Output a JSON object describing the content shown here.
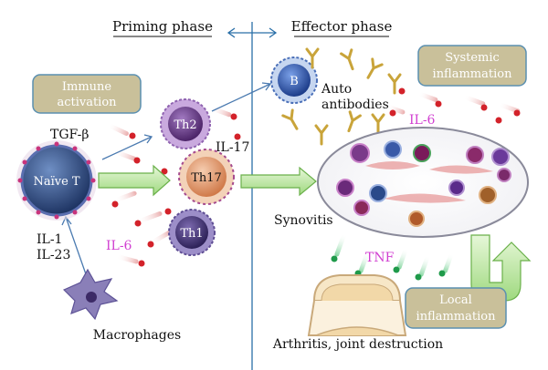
{
  "phases": {
    "priming": "Priming phase",
    "effector": "Effector phase"
  },
  "boxes": {
    "immune_activation_line1": "Immune",
    "immune_activation_line2": "activation",
    "systemic_line1": "Systemic",
    "systemic_line2": "inflammation",
    "local_line1": "Local",
    "local_line2": "inflammation"
  },
  "cells": {
    "naive_t": "Naïve T",
    "th2": "Th2",
    "th17": "Th17",
    "th1": "Th1",
    "b": "B"
  },
  "labels": {
    "tgf_beta": "TGF-β",
    "il17": "IL-17",
    "il1": "IL-1",
    "il23": "IL-23",
    "il6_left": "IL-6",
    "il6_right": "IL-6",
    "tnf": "TNF",
    "macrophages": "Macrophages",
    "auto_antibodies_line1": "Auto",
    "auto_antibodies_line2": "antibodies",
    "synovitis": "Synovitis",
    "arthritis": "Arthritis, joint destruction"
  },
  "colors": {
    "box_fill": "#c9c09a",
    "box_stroke": "#5a8fb0",
    "naive_t": "#2f4a7a",
    "th2": "#6b3f8a",
    "th17": "#e8a27a",
    "th1": "#4a3a78",
    "b_cell": "#2f55a8",
    "green_arrow": "#b8e6a0",
    "il6_pink": "#d13fd1",
    "divider": "#2a6fa8"
  }
}
